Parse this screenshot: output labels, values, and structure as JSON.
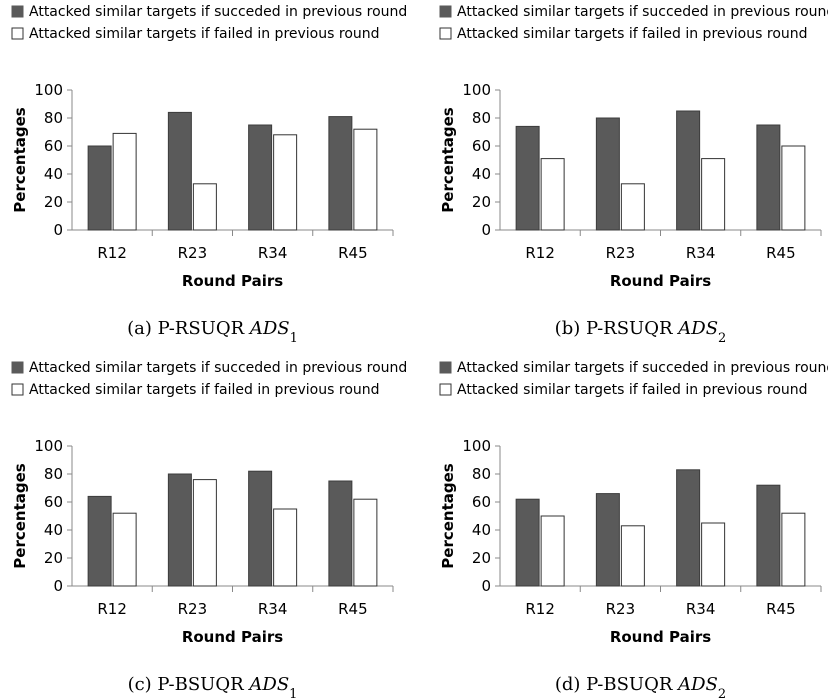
{
  "colors": {
    "succeeded": "#5a5a5a",
    "failed": "#ffffff",
    "bar_stroke": "#333333",
    "axis": "#888888"
  },
  "chart_data": [
    {
      "type": "bar",
      "caption": {
        "prefix": "(a) P-RSUQR ",
        "var": "ADS",
        "sub": "1"
      },
      "xlabel": "Round Pairs",
      "ylabel": "Percentages",
      "ylim": [
        0,
        100
      ],
      "yticks": [
        0,
        20,
        40,
        60,
        80,
        100
      ],
      "categories": [
        "R12",
        "R23",
        "R34",
        "R45"
      ],
      "legend": [
        "Attacked similar targets if succeded in previous round",
        "Attacked similar targets if failed in previous round"
      ],
      "series": [
        {
          "name": "Attacked similar targets if succeded in previous round",
          "values": [
            60,
            84,
            75,
            81
          ]
        },
        {
          "name": "Attacked similar targets if failed in previous round",
          "values": [
            69,
            33,
            68,
            72
          ]
        }
      ]
    },
    {
      "type": "bar",
      "caption": {
        "prefix": "(b) P-RSUQR ",
        "var": "ADS",
        "sub": "2"
      },
      "xlabel": "Round Pairs",
      "ylabel": "Percentages",
      "ylim": [
        0,
        100
      ],
      "yticks": [
        0,
        20,
        40,
        60,
        80,
        100
      ],
      "categories": [
        "R12",
        "R23",
        "R34",
        "R45"
      ],
      "legend": [
        "Attacked similar targets if succeded in previous round",
        "Attacked similar targets if failed in previous round"
      ],
      "series": [
        {
          "name": "Attacked similar targets if succeded in previous round",
          "values": [
            74,
            80,
            85,
            75
          ]
        },
        {
          "name": "Attacked similar targets if failed in previous round",
          "values": [
            51,
            33,
            51,
            60
          ]
        }
      ]
    },
    {
      "type": "bar",
      "caption": {
        "prefix": "(c) P-BSUQR ",
        "var": "ADS",
        "sub": "1"
      },
      "xlabel": "Round Pairs",
      "ylabel": "Percentages",
      "ylim": [
        0,
        100
      ],
      "yticks": [
        0,
        20,
        40,
        60,
        80,
        100
      ],
      "categories": [
        "R12",
        "R23",
        "R34",
        "R45"
      ],
      "legend": [
        "Attacked similar targets if succeded in previous round",
        "Attacked similar targets if failed in previous round"
      ],
      "series": [
        {
          "name": "Attacked similar targets if succeded in previous round",
          "values": [
            64,
            80,
            82,
            75
          ]
        },
        {
          "name": "Attacked similar targets if failed in previous round",
          "values": [
            52,
            76,
            55,
            62
          ]
        }
      ]
    },
    {
      "type": "bar",
      "caption": {
        "prefix": "(d) P-BSUQR ",
        "var": "ADS",
        "sub": "2"
      },
      "xlabel": "Round Pairs",
      "ylabel": "Percentages",
      "ylim": [
        0,
        100
      ],
      "yticks": [
        0,
        20,
        40,
        60,
        80,
        100
      ],
      "categories": [
        "R12",
        "R23",
        "R34",
        "R45"
      ],
      "legend": [
        "Attacked similar targets if succeded in previous round",
        "Attacked similar targets if failed in previous round"
      ],
      "series": [
        {
          "name": "Attacked similar targets if succeded in previous round",
          "values": [
            62,
            66,
            83,
            72
          ]
        },
        {
          "name": "Attacked similar targets if failed in previous round",
          "values": [
            50,
            43,
            45,
            52
          ]
        }
      ]
    }
  ]
}
